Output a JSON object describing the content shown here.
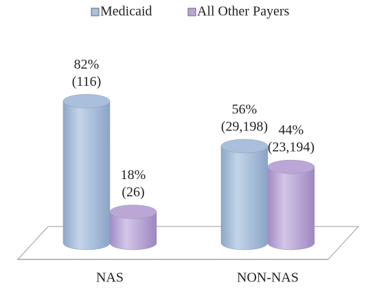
{
  "chart_data": {
    "type": "bar",
    "style": "3d-cylinder",
    "categories": [
      "NAS",
      "NON-NAS"
    ],
    "series": [
      {
        "name": "Medicaid",
        "color": "#a9bfdc",
        "values": [
          82,
          56
        ],
        "value_labels": [
          "82%",
          "56%"
        ],
        "count_labels": [
          "(116)",
          "(29,198)"
        ]
      },
      {
        "name": "All Other Payers",
        "color": "#bba6d6",
        "values": [
          18,
          44
        ],
        "value_labels": [
          "18%",
          "44%"
        ],
        "count_labels": [
          "(26)",
          "(23,194)"
        ]
      }
    ],
    "legend": "top"
  }
}
